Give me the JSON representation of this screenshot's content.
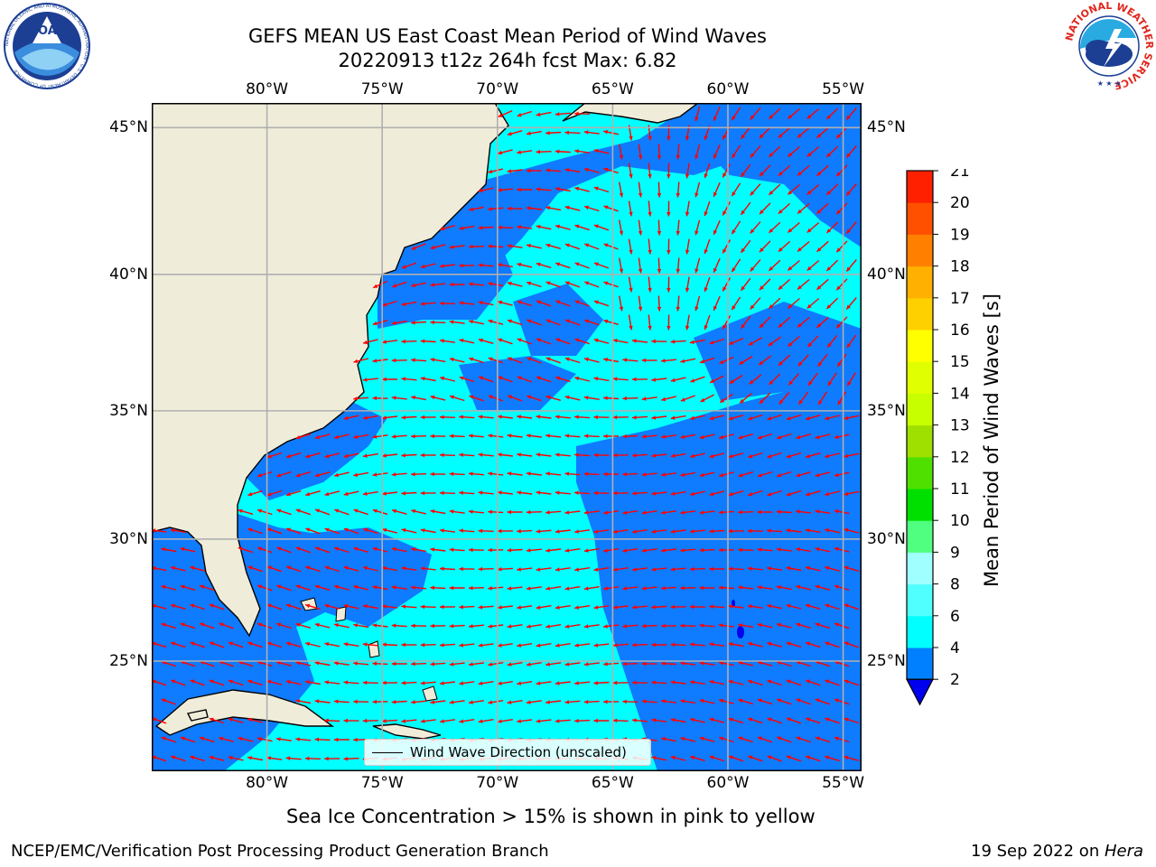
{
  "title": {
    "line1": "GEFS MEAN US East Coast Mean Period of Wind Waves",
    "line2": "20220913 t12z 264h fcst   Max: 6.82"
  },
  "map": {
    "lon_ticks": [
      "80°W",
      "75°W",
      "70°W",
      "65°W",
      "60°W",
      "55°W"
    ],
    "lat_ticks": [
      "45°N",
      "40°N",
      "35°N",
      "30°N",
      "25°N"
    ],
    "lon_values": [
      -80,
      -75,
      -70,
      -65,
      -60,
      -55
    ],
    "lat_values": [
      45,
      40,
      35,
      30,
      25
    ],
    "extent": {
      "lon": [
        -85,
        -54.2
      ],
      "lat": [
        20.3,
        45.8
      ]
    },
    "colors": {
      "land": "#efedda",
      "period_2_4": "#0f7bff",
      "period_4_6": "#00ffff",
      "period_lt_2": "#0000ee",
      "arrows": "#ff0000",
      "grid": "#b0b0b0",
      "coast": "#000000"
    },
    "legend_label": "Wind Wave Direction (unscaled)"
  },
  "colorbar": {
    "label": "Mean Period of Wind Waves [s]",
    "ticks": [
      "2",
      "4",
      "6",
      "8",
      "9",
      "10",
      "11",
      "12",
      "13",
      "14",
      "15",
      "16",
      "17",
      "18",
      "19",
      "20",
      "21"
    ],
    "colors": [
      "#0080ff",
      "#00ffff",
      "#50ffff",
      "#a0ffff",
      "#50ff80",
      "#00e000",
      "#50e000",
      "#a0e000",
      "#c8ff00",
      "#e0ff00",
      "#ffff00",
      "#ffd000",
      "#ffb000",
      "#ff8000",
      "#ff5000",
      "#ff2000"
    ],
    "under_color": "#0000ee"
  },
  "notes": {
    "sea_ice": "Sea Ice Concentration > 15% is shown in pink to yellow"
  },
  "footer": {
    "left": "NCEP/EMC/Verification Post Processing Product Generation Branch",
    "right_date": "19 Sep 2022 on ",
    "right_host": "Hera"
  },
  "logos": {
    "noaa_text": "NOAA",
    "noaa_ring": "NATIONAL OCEANIC AND ATMOSPHERIC ADMINISTRATION · U.S. DEPARTMENT OF COMMERCE",
    "nws_ring": "NATIONAL WEATHER SERVICE"
  }
}
